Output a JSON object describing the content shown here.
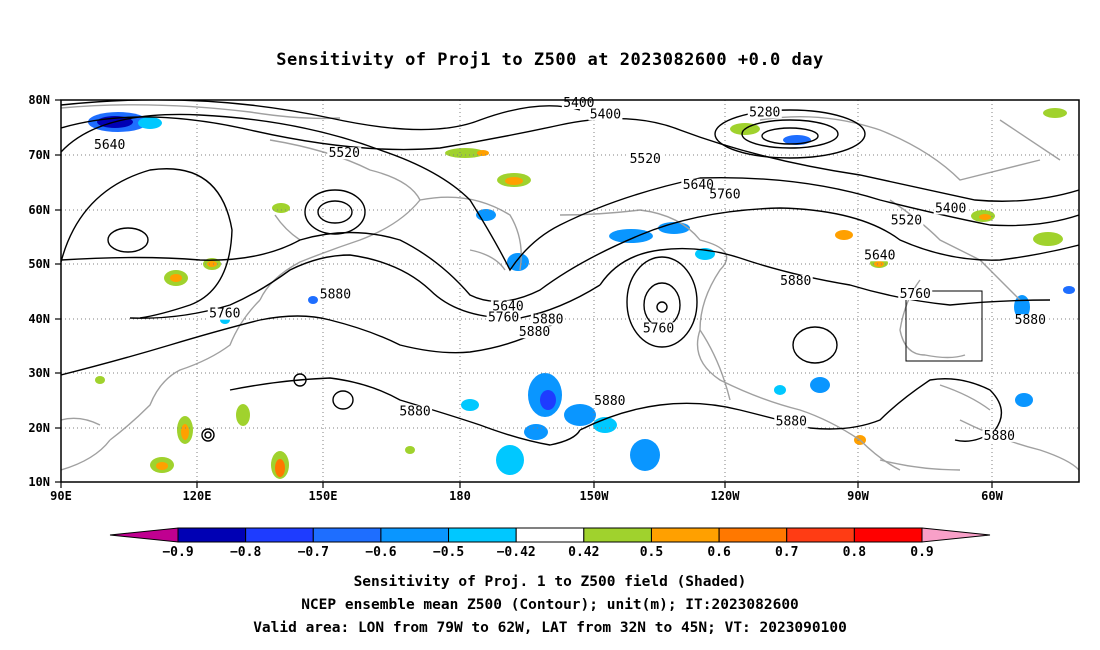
{
  "title": "Sensitivity of Proj1 to Z500 at 2023082600 +0.0 day",
  "map": {
    "lat_labels": [
      "80N",
      "70N",
      "60N",
      "50N",
      "40N",
      "30N",
      "20N",
      "10N"
    ],
    "lon_labels": [
      "90E",
      "120E",
      "150E",
      "180",
      "150W",
      "120W",
      "90W",
      "60W"
    ],
    "contour_labels": [
      {
        "text": "5400",
        "lon": 207,
        "lat": 78.9
      },
      {
        "text": "5400",
        "lon": 213,
        "lat": 76.8
      },
      {
        "text": "5280",
        "lon": 249,
        "lat": 77.2
      },
      {
        "text": "5640",
        "lon": 101,
        "lat": 71.2
      },
      {
        "text": "5520",
        "lon": 154,
        "lat": 69.7
      },
      {
        "text": "5520",
        "lon": 222,
        "lat": 68.6
      },
      {
        "text": "5640",
        "lon": 234,
        "lat": 63.9
      },
      {
        "text": "5760",
        "lon": 240,
        "lat": 62.1
      },
      {
        "text": "5400",
        "lon": 291,
        "lat": 59.6
      },
      {
        "text": "5520",
        "lon": 281,
        "lat": 57.4
      },
      {
        "text": "5640",
        "lon": 275,
        "lat": 51.0
      },
      {
        "text": "5880",
        "lon": 256,
        "lat": 46.3
      },
      {
        "text": "5760",
        "lon": 283,
        "lat": 43.9
      },
      {
        "text": "5880",
        "lon": 152,
        "lat": 43.8
      },
      {
        "text": "5640",
        "lon": 191,
        "lat": 41.6
      },
      {
        "text": "5760",
        "lon": 127,
        "lat": 40.3
      },
      {
        "text": "5760",
        "lon": 190,
        "lat": 39.6
      },
      {
        "text": "5880",
        "lon": 200,
        "lat": 39.2
      },
      {
        "text": "5880",
        "lon": 309,
        "lat": 39.1
      },
      {
        "text": "5760",
        "lon": 225,
        "lat": 37.6
      },
      {
        "text": "5880",
        "lon": 197,
        "lat": 36.9
      },
      {
        "text": "5880",
        "lon": 214,
        "lat": 24.3
      },
      {
        "text": "5880",
        "lon": 170,
        "lat": 22.4
      },
      {
        "text": "5880",
        "lon": 255,
        "lat": 20.5
      },
      {
        "text": "5880",
        "lon": 302,
        "lat": 17.9
      }
    ]
  },
  "colorbar": {
    "labels": [
      "−0.9",
      "−0.8",
      "−0.7",
      "−0.6",
      "−0.5",
      "−0.42",
      "0.42",
      "0.5",
      "0.6",
      "0.7",
      "0.8",
      "0.9"
    ],
    "colors": [
      "#c00090",
      "#0000b4",
      "#1e3cff",
      "#1e6eff",
      "#0a96ff",
      "#00c8ff",
      "#ffffff",
      "#a0d22d",
      "#ffa000",
      "#ff7800",
      "#ff3c14",
      "#ff0000",
      "#f8a0c8"
    ]
  },
  "captions": [
    "Sensitivity of Proj. 1 to Z500 field (Shaded)",
    "NCEP ensemble mean Z500 (Contour); unit(m); IT:2023082600",
    "Valid area: LON from 79W to 62W, LAT from 32N to 45N; VT: 2023090100"
  ],
  "valid_area": {
    "lon_from": -79,
    "lon_to": -62,
    "lat_from": 32,
    "lat_to": 45
  }
}
